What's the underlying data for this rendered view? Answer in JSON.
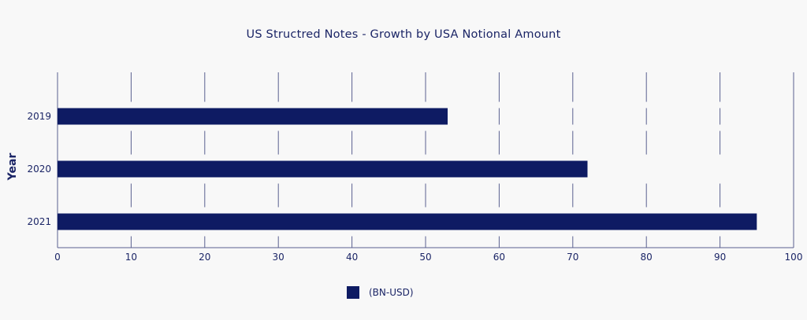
{
  "chart_data": {
    "type": "bar",
    "orientation": "horizontal",
    "title": "US Structred Notes - Growth by USA Notional Amount",
    "ylabel": "Year",
    "xlabel": "",
    "categories": [
      "2019",
      "2020",
      "2021"
    ],
    "series": [
      {
        "name": "(BN-USD)",
        "values": [
          53,
          72,
          95
        ]
      }
    ],
    "xlim": [
      0,
      100
    ],
    "xticks": [
      0,
      10,
      20,
      30,
      40,
      50,
      60,
      70,
      80,
      90,
      100
    ],
    "grid": "vertical",
    "legend": "bottom-center",
    "colors": {
      "bar": "#0e1b63",
      "grid": "#5a6090",
      "text": "#1b2566",
      "background": "#f8f8f8"
    }
  }
}
